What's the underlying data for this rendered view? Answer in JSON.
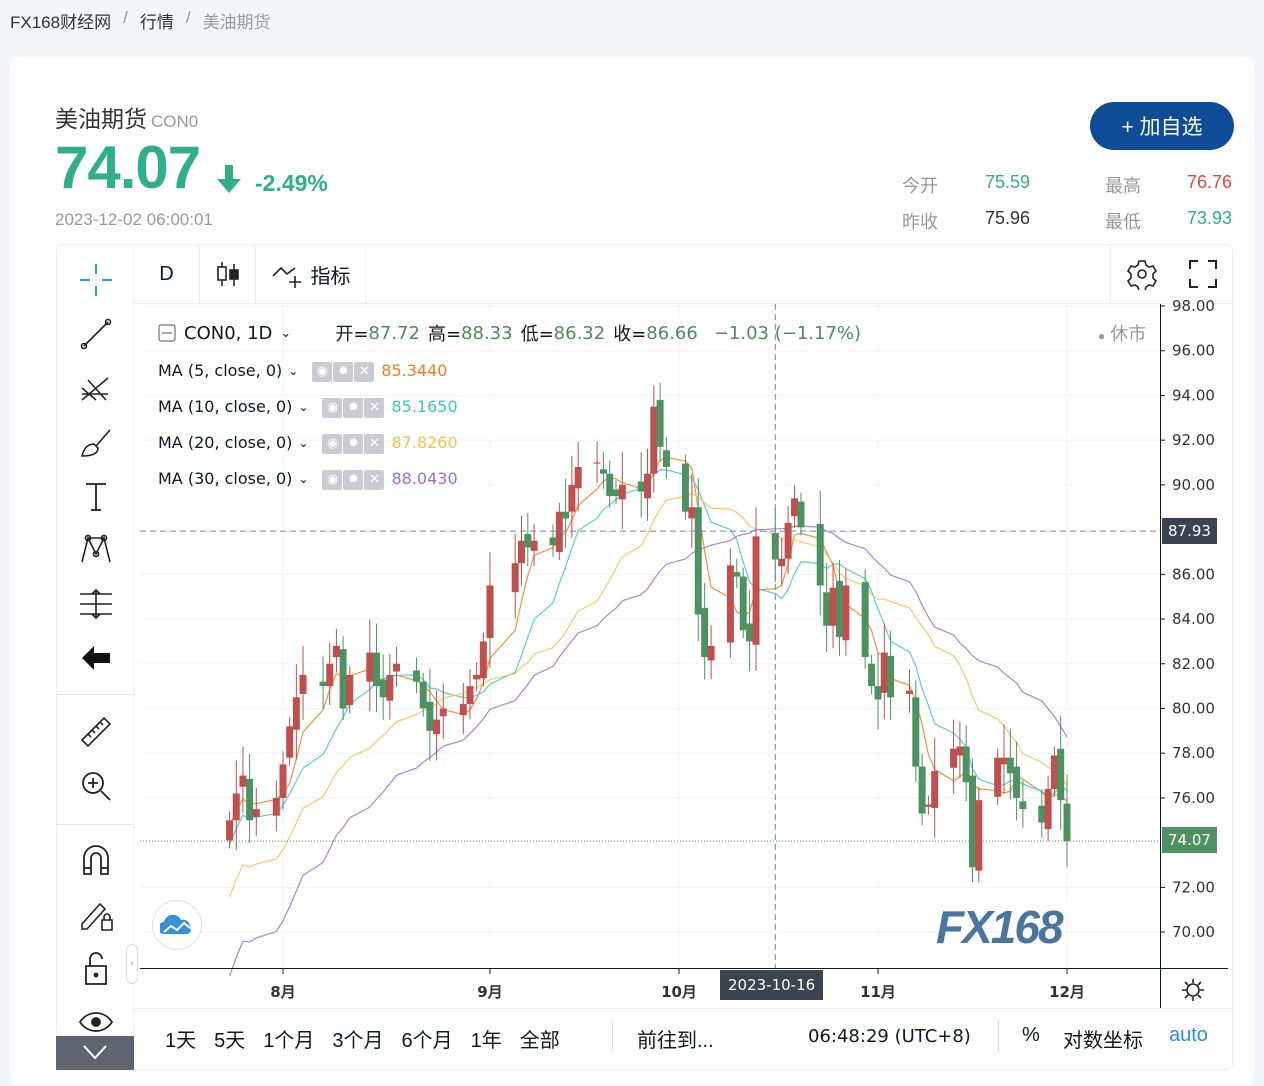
{
  "breadcrumb": [
    "FX168财经网",
    "行情",
    "美油期货"
  ],
  "header": {
    "name": "美油期货",
    "code": "CON0",
    "price": "74.07",
    "change_pct": "-2.49%",
    "datetime": "2023-12-02 06:00:01",
    "add_button": "+ 加自选"
  },
  "stats": {
    "open_label": "今开",
    "open": "75.59",
    "high_label": "最高",
    "high": "76.76",
    "prev_label": "昨收",
    "prev": "75.96",
    "low_label": "最低",
    "low": "73.93"
  },
  "colors": {
    "up": "#c0504d",
    "down": "#4f9262",
    "price_green": "#2fb08a",
    "high_red": "#e0473f",
    "brand": "#0e4c98",
    "ma5": "#f57c1f",
    "ma10": "#3fc4cc",
    "ma20": "#f8c050",
    "ma30": "#9c6fd0"
  },
  "toolbar": {
    "interval": "D",
    "indicators": "指标"
  },
  "legend": {
    "symbol": "CON0, 1D",
    "open_label": "开=",
    "open": "87.72",
    "high_label": "高=",
    "high": "88.33",
    "low_label": "低=",
    "low": "86.32",
    "close_label": "收=",
    "close": "86.66",
    "change": "−1.03 (−1.17%)",
    "market_status": "休市"
  },
  "ma": [
    {
      "label": "MA (5, close, 0)",
      "value": "85.3440"
    },
    {
      "label": "MA (10, close, 0)",
      "value": "85.1650"
    },
    {
      "label": "MA (20, close, 0)",
      "value": "87.8260"
    },
    {
      "label": "MA (30, close, 0)",
      "value": "88.0430"
    }
  ],
  "price_axis": [
    "98.00",
    "96.00",
    "94.00",
    "92.00",
    "90.00",
    "86.00",
    "84.00",
    "82.00",
    "80.00",
    "78.00",
    "76.00",
    "72.00",
    "70.00"
  ],
  "crosshair": {
    "price": "87.93",
    "date": "2023-10-16"
  },
  "last_price": "74.07",
  "time_axis": [
    "8月",
    "9月",
    "10月",
    "11月",
    "12月"
  ],
  "watermark": "FX168",
  "bottom": {
    "ranges": [
      "1天",
      "5天",
      "1个月",
      "3个月",
      "6个月",
      "1年",
      "全部"
    ],
    "goto": "前往到...",
    "clock": "06:48:29 (UTC+8)",
    "percent": "%",
    "log": "对数坐标",
    "auto": "auto"
  },
  "chart_data": {
    "type": "candlestick",
    "dates": [
      "2023-07-24",
      "2023-07-25",
      "2023-07-26",
      "2023-07-27",
      "2023-07-28",
      "2023-07-31",
      "2023-08-01",
      "2023-08-02",
      "2023-08-03",
      "2023-08-04",
      "2023-08-07",
      "2023-08-08",
      "2023-08-09",
      "2023-08-10",
      "2023-08-11",
      "2023-08-14",
      "2023-08-15",
      "2023-08-16",
      "2023-08-17",
      "2023-08-18",
      "2023-08-21",
      "2023-08-22",
      "2023-08-23",
      "2023-08-24",
      "2023-08-25",
      "2023-08-28",
      "2023-08-29",
      "2023-08-30",
      "2023-08-31",
      "2023-09-01",
      "2023-09-05",
      "2023-09-06",
      "2023-09-07",
      "2023-09-08",
      "2023-09-11",
      "2023-09-12",
      "2023-09-13",
      "2023-09-14",
      "2023-09-15",
      "2023-09-18",
      "2023-09-19",
      "2023-09-20",
      "2023-09-21",
      "2023-09-22",
      "2023-09-25",
      "2023-09-26",
      "2023-09-27",
      "2023-09-28",
      "2023-09-29",
      "2023-10-02",
      "2023-10-03",
      "2023-10-04",
      "2023-10-05",
      "2023-10-06",
      "2023-10-09",
      "2023-10-10",
      "2023-10-11",
      "2023-10-12",
      "2023-10-13",
      "2023-10-16",
      "2023-10-17",
      "2023-10-18",
      "2023-10-19",
      "2023-10-20",
      "2023-10-23",
      "2023-10-24",
      "2023-10-25",
      "2023-10-26",
      "2023-10-27",
      "2023-10-30",
      "2023-10-31",
      "2023-11-01",
      "2023-11-02",
      "2023-11-03",
      "2023-11-06",
      "2023-11-07",
      "2023-11-08",
      "2023-11-09",
      "2023-11-10",
      "2023-11-13",
      "2023-11-14",
      "2023-11-15",
      "2023-11-16",
      "2023-11-17",
      "2023-11-20",
      "2023-11-21",
      "2023-11-22",
      "2023-11-23",
      "2023-11-24",
      "2023-11-27",
      "2023-11-28",
      "2023-11-29",
      "2023-11-30",
      "2023-12-01"
    ],
    "close": [
      75.0,
      76.2,
      77.0,
      75.0,
      75.5,
      76.0,
      77.5,
      79.2,
      80.5,
      81.5,
      81.0,
      82.0,
      82.8,
      80.0,
      81.5,
      82.5,
      81.0,
      80.5,
      81.5,
      82.0,
      81.2,
      80.0,
      79.0,
      79.5,
      80.0,
      80.2,
      81.0,
      81.5,
      83.0,
      85.5,
      86.5,
      87.5,
      87.2,
      87.5,
      87.3,
      88.8,
      88.5,
      90.0,
      90.8,
      91.0,
      90.5,
      89.5,
      89.5,
      90.0,
      89.7,
      90.5,
      93.5,
      91.7,
      90.8,
      88.8,
      89.0,
      84.2,
      82.3,
      82.8,
      86.4,
      85.9,
      83.5,
      83.0,
      87.7,
      86.66,
      86.7,
      88.3,
      89.4,
      88.1,
      85.5,
      83.7,
      85.4,
      83.2,
      85.5,
      82.3,
      81.0,
      80.4,
      82.5,
      80.5,
      80.8,
      77.4,
      75.3,
      75.7,
      77.2,
      78.2,
      78.3,
      76.7,
      72.9,
      75.9,
      77.8,
      77.8,
      77.1,
      76.0,
      75.5,
      74.9,
      76.4,
      77.9,
      75.9,
      74.07
    ],
    "ma_periods": [
      5,
      10,
      20,
      30
    ],
    "ylim": [
      69,
      98.5
    ],
    "y_ticks": [
      98,
      96,
      94,
      92,
      90,
      86,
      84,
      82,
      80,
      78,
      76,
      72,
      70
    ],
    "x_ticks": [
      "8月",
      "9月",
      "10月",
      "11月",
      "12月"
    ],
    "grid": true
  }
}
